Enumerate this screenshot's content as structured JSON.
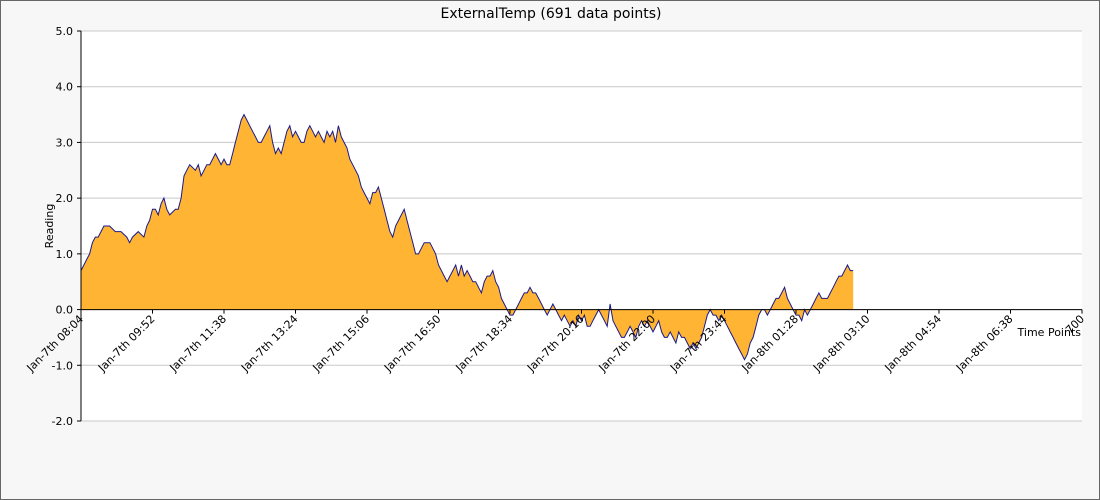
{
  "chart_data": {
    "type": "area",
    "title": "ExternalTemp (691 data points)",
    "xlabel": "Time Points",
    "ylabel": "Reading",
    "ylim": [
      -2.0,
      5.0
    ],
    "y_ticks": [
      "5.0",
      "4.0",
      "3.0",
      "2.0",
      "1.0",
      "0.0",
      "-1.0",
      "-2.0"
    ],
    "y_tick_values": [
      5,
      4,
      3,
      2,
      1,
      0,
      -1,
      -2
    ],
    "xlim": [
      0,
      700
    ],
    "x_ticks": [
      {
        "x": 0,
        "label": "Jan-7th 08:04"
      },
      {
        "x": 50,
        "label": "Jan-7th 09:52"
      },
      {
        "x": 100,
        "label": "Jan-7th 11:38"
      },
      {
        "x": 150,
        "label": "Jan-7th 13:24"
      },
      {
        "x": 200,
        "label": "Jan-7th 15:06"
      },
      {
        "x": 250,
        "label": "Jan-7th 16:50"
      },
      {
        "x": 300,
        "label": "Jan-7th 18:34"
      },
      {
        "x": 350,
        "label": "Jan-7th 20:16"
      },
      {
        "x": 400,
        "label": "Jan-7th 22:00"
      },
      {
        "x": 450,
        "label": "Jan-7th 23:44"
      },
      {
        "x": 500,
        "label": "Jan-8th 01:28"
      },
      {
        "x": 550,
        "label": "Jan-8th 03:10"
      },
      {
        "x": 600,
        "label": "Jan-8th 04:54"
      },
      {
        "x": 650,
        "label": "Jan-8th 06:38"
      },
      {
        "x": 700,
        "label": "700"
      }
    ],
    "grid": true,
    "series": [
      {
        "name": "ExternalTemp",
        "fill_color": "#ffb533",
        "line_color": "#1a1a8c",
        "points": [
          [
            0,
            0.7
          ],
          [
            2,
            0.8
          ],
          [
            4,
            0.9
          ],
          [
            6,
            1.0
          ],
          [
            8,
            1.2
          ],
          [
            10,
            1.3
          ],
          [
            12,
            1.3
          ],
          [
            14,
            1.4
          ],
          [
            16,
            1.5
          ],
          [
            20,
            1.5
          ],
          [
            24,
            1.4
          ],
          [
            28,
            1.4
          ],
          [
            32,
            1.3
          ],
          [
            34,
            1.2
          ],
          [
            36,
            1.3
          ],
          [
            40,
            1.4
          ],
          [
            44,
            1.3
          ],
          [
            46,
            1.5
          ],
          [
            48,
            1.6
          ],
          [
            50,
            1.8
          ],
          [
            52,
            1.8
          ],
          [
            54,
            1.7
          ],
          [
            56,
            1.9
          ],
          [
            58,
            2.0
          ],
          [
            60,
            1.8
          ],
          [
            62,
            1.7
          ],
          [
            66,
            1.8
          ],
          [
            68,
            1.8
          ],
          [
            70,
            2.0
          ],
          [
            72,
            2.4
          ],
          [
            74,
            2.5
          ],
          [
            76,
            2.6
          ],
          [
            80,
            2.5
          ],
          [
            82,
            2.6
          ],
          [
            84,
            2.4
          ],
          [
            86,
            2.5
          ],
          [
            88,
            2.6
          ],
          [
            90,
            2.6
          ],
          [
            92,
            2.7
          ],
          [
            94,
            2.8
          ],
          [
            96,
            2.7
          ],
          [
            98,
            2.6
          ],
          [
            100,
            2.7
          ],
          [
            102,
            2.6
          ],
          [
            104,
            2.6
          ],
          [
            106,
            2.8
          ],
          [
            108,
            3.0
          ],
          [
            110,
            3.2
          ],
          [
            112,
            3.4
          ],
          [
            114,
            3.5
          ],
          [
            116,
            3.4
          ],
          [
            118,
            3.3
          ],
          [
            120,
            3.2
          ],
          [
            122,
            3.1
          ],
          [
            124,
            3.0
          ],
          [
            126,
            3.0
          ],
          [
            128,
            3.1
          ],
          [
            130,
            3.2
          ],
          [
            132,
            3.3
          ],
          [
            134,
            3.0
          ],
          [
            136,
            2.8
          ],
          [
            138,
            2.9
          ],
          [
            140,
            2.8
          ],
          [
            142,
            3.0
          ],
          [
            144,
            3.2
          ],
          [
            146,
            3.3
          ],
          [
            148,
            3.1
          ],
          [
            150,
            3.2
          ],
          [
            152,
            3.1
          ],
          [
            154,
            3.0
          ],
          [
            156,
            3.0
          ],
          [
            158,
            3.2
          ],
          [
            160,
            3.3
          ],
          [
            162,
            3.2
          ],
          [
            164,
            3.1
          ],
          [
            166,
            3.2
          ],
          [
            168,
            3.1
          ],
          [
            170,
            3.0
          ],
          [
            172,
            3.2
          ],
          [
            174,
            3.1
          ],
          [
            176,
            3.2
          ],
          [
            178,
            3.0
          ],
          [
            180,
            3.3
          ],
          [
            182,
            3.1
          ],
          [
            184,
            3.0
          ],
          [
            186,
            2.9
          ],
          [
            188,
            2.7
          ],
          [
            190,
            2.6
          ],
          [
            192,
            2.5
          ],
          [
            194,
            2.4
          ],
          [
            196,
            2.2
          ],
          [
            198,
            2.1
          ],
          [
            200,
            2.0
          ],
          [
            202,
            1.9
          ],
          [
            204,
            2.1
          ],
          [
            206,
            2.1
          ],
          [
            208,
            2.2
          ],
          [
            210,
            2.0
          ],
          [
            212,
            1.8
          ],
          [
            214,
            1.6
          ],
          [
            216,
            1.4
          ],
          [
            218,
            1.3
          ],
          [
            220,
            1.5
          ],
          [
            222,
            1.6
          ],
          [
            224,
            1.7
          ],
          [
            226,
            1.8
          ],
          [
            228,
            1.6
          ],
          [
            230,
            1.4
          ],
          [
            232,
            1.2
          ],
          [
            234,
            1.0
          ],
          [
            236,
            1.0
          ],
          [
            238,
            1.1
          ],
          [
            240,
            1.2
          ],
          [
            244,
            1.2
          ],
          [
            246,
            1.1
          ],
          [
            248,
            1.0
          ],
          [
            250,
            0.8
          ],
          [
            252,
            0.7
          ],
          [
            254,
            0.6
          ],
          [
            256,
            0.5
          ],
          [
            258,
            0.6
          ],
          [
            260,
            0.7
          ],
          [
            262,
            0.8
          ],
          [
            264,
            0.6
          ],
          [
            266,
            0.8
          ],
          [
            268,
            0.6
          ],
          [
            270,
            0.7
          ],
          [
            272,
            0.6
          ],
          [
            274,
            0.5
          ],
          [
            276,
            0.5
          ],
          [
            278,
            0.4
          ],
          [
            280,
            0.3
          ],
          [
            282,
            0.5
          ],
          [
            284,
            0.6
          ],
          [
            286,
            0.6
          ],
          [
            288,
            0.7
          ],
          [
            290,
            0.5
          ],
          [
            292,
            0.4
          ],
          [
            294,
            0.2
          ],
          [
            296,
            0.1
          ],
          [
            298,
            0.0
          ],
          [
            300,
            -0.1
          ],
          [
            302,
            -0.1
          ],
          [
            304,
            0.0
          ],
          [
            306,
            0.1
          ],
          [
            308,
            0.2
          ],
          [
            310,
            0.3
          ],
          [
            312,
            0.3
          ],
          [
            314,
            0.4
          ],
          [
            316,
            0.3
          ],
          [
            318,
            0.3
          ],
          [
            320,
            0.2
          ],
          [
            322,
            0.1
          ],
          [
            324,
            0.0
          ],
          [
            326,
            -0.1
          ],
          [
            328,
            0.0
          ],
          [
            330,
            0.1
          ],
          [
            332,
            0.0
          ],
          [
            334,
            -0.1
          ],
          [
            336,
            -0.2
          ],
          [
            338,
            -0.1
          ],
          [
            340,
            -0.2
          ],
          [
            342,
            -0.3
          ],
          [
            344,
            -0.2
          ],
          [
            346,
            -0.3
          ],
          [
            348,
            -0.1
          ],
          [
            350,
            -0.2
          ],
          [
            352,
            -0.1
          ],
          [
            354,
            -0.3
          ],
          [
            356,
            -0.3
          ],
          [
            358,
            -0.2
          ],
          [
            360,
            -0.1
          ],
          [
            362,
            0.0
          ],
          [
            364,
            -0.1
          ],
          [
            366,
            -0.2
          ],
          [
            368,
            -0.3
          ],
          [
            370,
            0.1
          ],
          [
            372,
            -0.2
          ],
          [
            374,
            -0.3
          ],
          [
            376,
            -0.4
          ],
          [
            378,
            -0.5
          ],
          [
            380,
            -0.5
          ],
          [
            382,
            -0.4
          ],
          [
            384,
            -0.3
          ],
          [
            386,
            -0.4
          ],
          [
            388,
            -0.5
          ],
          [
            390,
            -0.3
          ],
          [
            392,
            -0.2
          ],
          [
            394,
            -0.3
          ],
          [
            396,
            -0.2
          ],
          [
            398,
            -0.3
          ],
          [
            400,
            -0.4
          ],
          [
            402,
            -0.3
          ],
          [
            404,
            -0.2
          ],
          [
            406,
            -0.4
          ],
          [
            408,
            -0.5
          ],
          [
            410,
            -0.5
          ],
          [
            412,
            -0.4
          ],
          [
            414,
            -0.5
          ],
          [
            416,
            -0.6
          ],
          [
            418,
            -0.4
          ],
          [
            420,
            -0.5
          ],
          [
            422,
            -0.5
          ],
          [
            424,
            -0.6
          ],
          [
            426,
            -0.7
          ],
          [
            428,
            -0.6
          ],
          [
            430,
            -0.7
          ],
          [
            432,
            -0.6
          ],
          [
            434,
            -0.5
          ],
          [
            436,
            -0.3
          ],
          [
            438,
            -0.1
          ],
          [
            440,
            0.0
          ],
          [
            442,
            -0.1
          ],
          [
            444,
            -0.1
          ],
          [
            446,
            -0.2
          ],
          [
            448,
            -0.1
          ],
          [
            450,
            -0.2
          ],
          [
            452,
            -0.3
          ],
          [
            454,
            -0.4
          ],
          [
            456,
            -0.5
          ],
          [
            458,
            -0.6
          ],
          [
            460,
            -0.7
          ],
          [
            462,
            -0.8
          ],
          [
            464,
            -0.9
          ],
          [
            466,
            -0.8
          ],
          [
            468,
            -0.6
          ],
          [
            470,
            -0.5
          ],
          [
            472,
            -0.3
          ],
          [
            474,
            -0.1
          ],
          [
            476,
            0.0
          ],
          [
            478,
            0.0
          ],
          [
            480,
            -0.1
          ],
          [
            482,
            0.0
          ],
          [
            484,
            0.1
          ],
          [
            486,
            0.2
          ],
          [
            488,
            0.2
          ],
          [
            490,
            0.3
          ],
          [
            492,
            0.4
          ],
          [
            494,
            0.2
          ],
          [
            496,
            0.1
          ],
          [
            498,
            0.0
          ],
          [
            500,
            -0.1
          ],
          [
            502,
            -0.1
          ],
          [
            504,
            -0.2
          ],
          [
            506,
            0.0
          ],
          [
            508,
            -0.1
          ],
          [
            510,
            0.0
          ],
          [
            512,
            0.1
          ],
          [
            514,
            0.2
          ],
          [
            516,
            0.3
          ],
          [
            518,
            0.2
          ],
          [
            520,
            0.2
          ],
          [
            522,
            0.2
          ],
          [
            524,
            0.3
          ],
          [
            526,
            0.4
          ],
          [
            528,
            0.5
          ],
          [
            530,
            0.6
          ],
          [
            532,
            0.6
          ],
          [
            534,
            0.7
          ],
          [
            536,
            0.8
          ],
          [
            538,
            0.7
          ],
          [
            540,
            0.7
          ]
        ]
      }
    ]
  }
}
